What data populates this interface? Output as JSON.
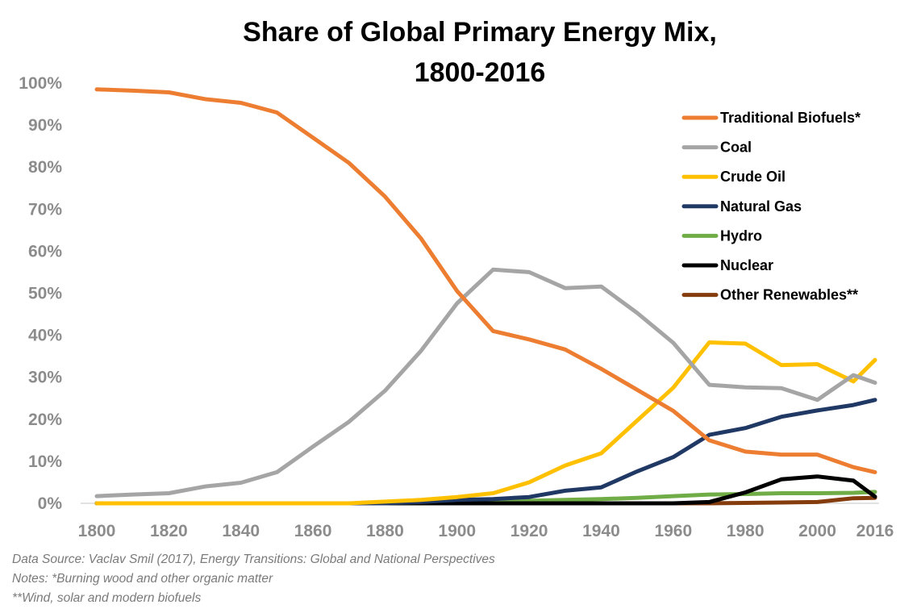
{
  "chart_data": {
    "type": "line",
    "title": "Share of Global Primary Energy Mix,",
    "title_line2": "1800-2016",
    "xlabel": "",
    "ylabel": "",
    "xlim": [
      1800,
      2016
    ],
    "ylim": [
      0,
      100
    ],
    "y_tick_values": [
      0,
      10,
      20,
      30,
      40,
      50,
      60,
      70,
      80,
      90,
      100
    ],
    "y_tick_labels": [
      "0%",
      "10%",
      "20%",
      "30%",
      "40%",
      "50%",
      "60%",
      "70%",
      "80%",
      "90%",
      "100%"
    ],
    "x_tick_values": [
      1800,
      1820,
      1840,
      1860,
      1880,
      1900,
      1920,
      1940,
      1960,
      1980,
      2000,
      2016
    ],
    "x_tick_labels": [
      "1800",
      "1820",
      "1840",
      "1860",
      "1880",
      "1900",
      "1920",
      "1940",
      "1960",
      "1980",
      "2000",
      "2016"
    ],
    "legend_position": "top-right",
    "x": [
      1800,
      1810,
      1820,
      1830,
      1840,
      1850,
      1860,
      1870,
      1880,
      1890,
      1900,
      1910,
      1920,
      1930,
      1940,
      1950,
      1960,
      1970,
      1980,
      1990,
      2000,
      2010,
      2016
    ],
    "series": [
      {
        "name": "Traditional Biofuels*",
        "color": "#ed7d31",
        "values": [
          98.5,
          98.2,
          97.8,
          96.2,
          95.3,
          93.0,
          87.0,
          81.0,
          73.0,
          63.0,
          50.5,
          41.0,
          39.0,
          36.6,
          32.0,
          27.0,
          22.0,
          15.0,
          12.3,
          11.6,
          11.6,
          8.6,
          7.4
        ]
      },
      {
        "name": "Coal",
        "color": "#a5a5a5",
        "values": [
          1.7,
          2.1,
          2.4,
          4.0,
          4.9,
          7.4,
          13.5,
          19.4,
          26.8,
          36.3,
          47.6,
          55.6,
          55.0,
          51.2,
          51.6,
          45.3,
          38.2,
          28.2,
          27.6,
          27.4,
          24.6,
          30.5,
          28.7
        ]
      },
      {
        "name": "Crude Oil",
        "color": "#ffc000",
        "values": [
          0,
          0,
          0,
          0,
          0,
          0,
          0,
          0,
          0.4,
          0.8,
          1.5,
          2.4,
          5.0,
          9.0,
          11.9,
          19.7,
          27.5,
          38.3,
          38.0,
          32.9,
          33.1,
          29.0,
          34.1
        ]
      },
      {
        "name": "Natural Gas",
        "color": "#203864",
        "values": [
          0,
          0,
          0,
          0,
          0,
          0,
          0,
          0,
          0,
          0.3,
          0.8,
          1.0,
          1.5,
          3.0,
          3.8,
          7.6,
          11.0,
          16.3,
          17.9,
          20.6,
          22.1,
          23.4,
          24.6
        ]
      },
      {
        "name": "Hydro",
        "color": "#70ad47",
        "values": [
          0,
          0,
          0,
          0,
          0,
          0,
          0,
          0,
          0,
          0,
          0.2,
          0.4,
          0.6,
          0.8,
          1.0,
          1.3,
          1.7,
          2.1,
          2.2,
          2.4,
          2.4,
          2.5,
          2.7
        ]
      },
      {
        "name": "Nuclear",
        "color": "#000000",
        "values": [
          0,
          0,
          0,
          0,
          0,
          0,
          0,
          0,
          0,
          0,
          0,
          0,
          0,
          0,
          0,
          0,
          0,
          0.3,
          2.6,
          5.7,
          6.4,
          5.4,
          1.6
        ]
      },
      {
        "name": "Other Renewables**",
        "color": "#843c0c",
        "values": [
          0,
          0,
          0,
          0,
          0,
          0,
          0,
          0,
          0,
          0,
          0,
          0,
          0,
          0,
          0,
          0,
          0,
          0,
          0.1,
          0.2,
          0.3,
          1.2,
          1.3
        ]
      }
    ]
  },
  "footnotes": [
    "Data Source: Vaclav Smil (2017), Energy Transitions: Global and National Perspectives",
    "Notes: *Burning wood and other organic matter",
    "**Wind, solar and modern biofuels"
  ]
}
